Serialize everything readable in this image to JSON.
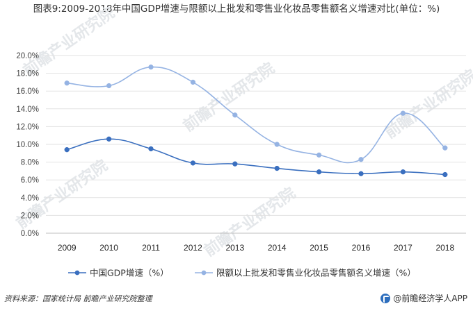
{
  "title": "图表9:2009-2018年中国GDP增速与限额以上批发和零售业化妆品零售额名义增速对比(单位：%)",
  "chart_data": {
    "type": "line",
    "categories": [
      "2009",
      "2010",
      "2011",
      "2012",
      "2013",
      "2014",
      "2015",
      "2016",
      "2017",
      "2018"
    ],
    "series": [
      {
        "name": "中国GDP增速（%）",
        "color": "#3a6fbf",
        "values": [
          9.4,
          10.6,
          9.5,
          7.9,
          7.8,
          7.3,
          6.9,
          6.7,
          6.9,
          6.6
        ]
      },
      {
        "name": "限额以上批发和零售业化妆品零售额名义增速（%）",
        "color": "#95b3e3",
        "values": [
          16.9,
          16.6,
          18.7,
          17.0,
          13.3,
          10.0,
          8.8,
          8.3,
          13.5,
          9.6
        ]
      }
    ],
    "yticks": [
      "0.0%",
      "2.0%",
      "4.0%",
      "6.0%",
      "8.0%",
      "10.0%",
      "12.0%",
      "14.0%",
      "16.0%",
      "18.0%",
      "20.0%"
    ],
    "ylim": [
      0,
      20
    ],
    "grid": true,
    "legend": "bottom",
    "smooth": true
  },
  "watermark": "前瞻产业研究院",
  "footer": {
    "source": "资料来源：国家统计局 前瞻产业研究院整理",
    "brand": "@前瞻经济学人APP"
  }
}
